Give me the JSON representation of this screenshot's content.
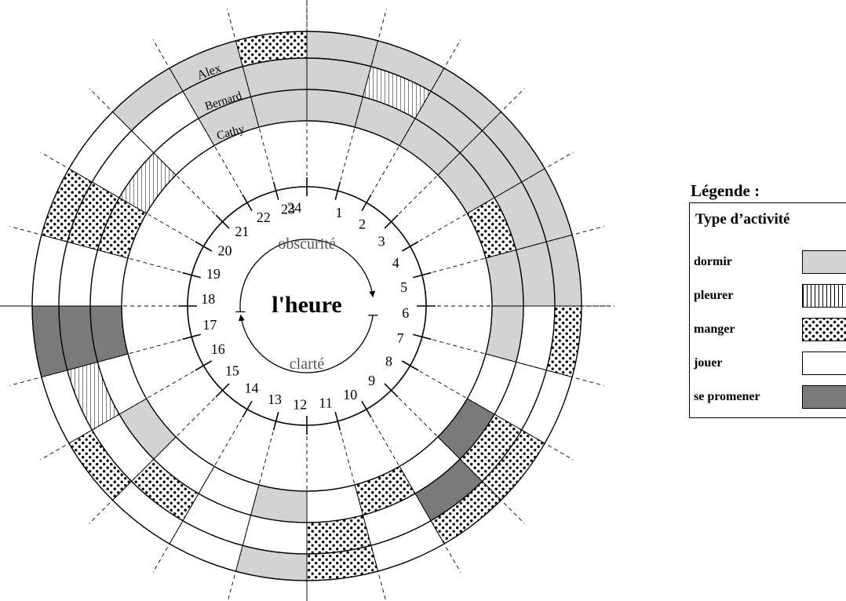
{
  "center_label": "l'heure",
  "arc_labels": {
    "dark": "obscurité",
    "light": "clarté"
  },
  "hours": [
    "24",
    "1",
    "2",
    "3",
    "4",
    "5",
    "6",
    "7",
    "8",
    "9",
    "10",
    "11",
    "12",
    "13",
    "14",
    "15",
    "16",
    "17",
    "18",
    "19",
    "20",
    "21",
    "22",
    "23"
  ],
  "rings": [
    {
      "name": "Alex",
      "segments": [
        "dormir",
        "dormir",
        "dormir",
        "dormir",
        "dormir",
        "dormir",
        "manger",
        "jouer",
        "manger",
        "manger",
        "jouer",
        "manger",
        "dormir",
        "jouer",
        "jouer",
        "manger",
        "jouer",
        "se promener",
        "jouer",
        "manger",
        "jouer",
        "dormir",
        "dormir",
        "manger"
      ]
    },
    {
      "name": "Bernard",
      "segments": [
        "dormir",
        "pleurer",
        "dormir",
        "dormir",
        "dormir",
        "dormir",
        "jouer",
        "jouer",
        "manger",
        "se promener",
        "jouer",
        "manger",
        "jouer",
        "jouer",
        "manger",
        "jouer",
        "pleurer",
        "se promener",
        "jouer",
        "manger",
        "jouer",
        "jouer",
        "dormir",
        "dormir"
      ]
    },
    {
      "name": "Cathy",
      "segments": [
        "dormir",
        "dormir",
        "dormir",
        "dormir",
        "manger",
        "dormir",
        "dormir",
        "jouer",
        "se promener",
        "jouer",
        "manger",
        "jouer",
        "dormir",
        "jouer",
        "jouer",
        "dormir",
        "jouer",
        "se promener",
        "jouer",
        "manger",
        "pleurer",
        "jouer",
        "dormir",
        "dormir"
      ]
    }
  ],
  "legend": {
    "title": "Légende :",
    "header": "Type d’activité",
    "items": [
      {
        "label": "dormir",
        "key": "dormir"
      },
      {
        "label": "pleurer",
        "key": "pleurer"
      },
      {
        "label": "manger",
        "key": "manger"
      },
      {
        "label": "jouer",
        "key": "jouer"
      },
      {
        "label": "se promener",
        "key": "se promener"
      }
    ]
  },
  "colors": {
    "dormir": "#d3d3d3",
    "se promener": "#7a7a7a",
    "jouer": "#ffffff",
    "line": "#000000",
    "arc_text": "#555555"
  }
}
